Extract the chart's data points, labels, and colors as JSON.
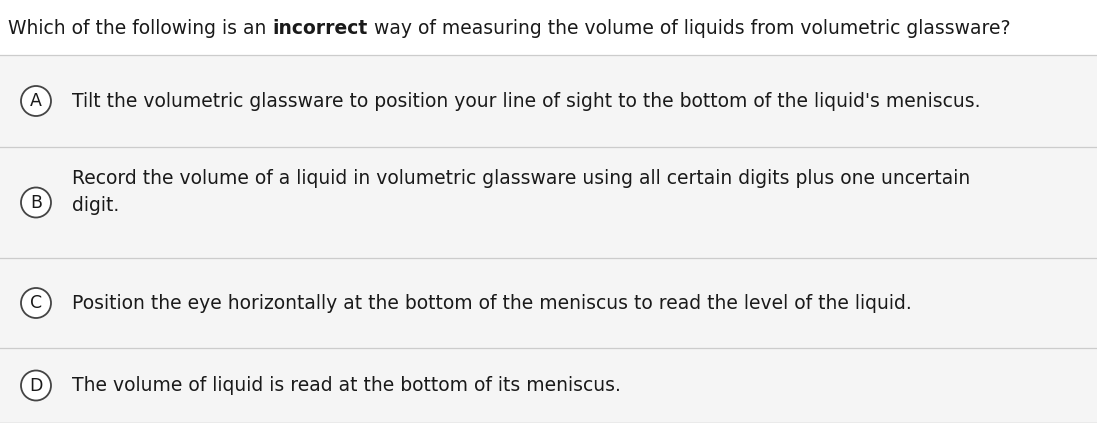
{
  "background_color": "#ffffff",
  "question_parts": [
    {
      "text": "Which of the following is an ",
      "bold": false
    },
    {
      "text": "incorrect",
      "bold": true
    },
    {
      "text": " way of measuring the volume of liquids from volumetric glassware?",
      "bold": false
    }
  ],
  "options": [
    {
      "label": "A",
      "text": "Tilt the volumetric glassware to position your line of sight to the bottom of the liquid's meniscus.",
      "multiline": false
    },
    {
      "label": "B",
      "text": "Record the volume of a liquid in volumetric glassware using all certain digits plus one uncertain\ndigit.",
      "multiline": true
    },
    {
      "label": "C",
      "text": "Position the eye horizontally at the bottom of the meniscus to read the level of the liquid.",
      "multiline": false
    },
    {
      "label": "D",
      "text": "The volume of liquid is read at the bottom of its meniscus.",
      "multiline": false
    }
  ],
  "question_fontsize": 13.5,
  "option_fontsize": 13.5,
  "label_fontsize": 12.5,
  "text_color": "#1a1a1a",
  "circle_edge_color": "#444444",
  "separator_color": "#cccccc",
  "option_bg": "#f5f5f5",
  "outer_bg": "#ffffff",
  "question_bg": "#ffffff"
}
